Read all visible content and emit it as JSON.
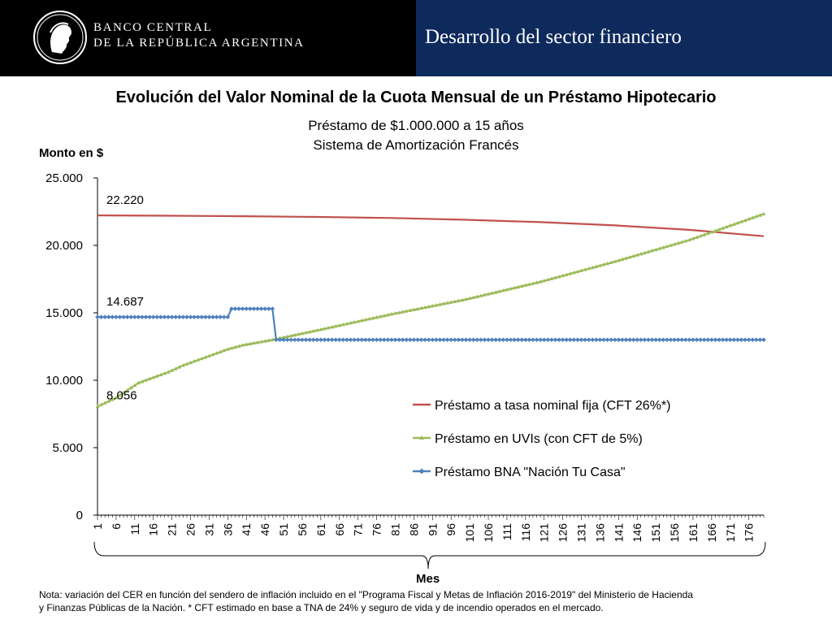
{
  "header": {
    "bank_name_line1": "BANCO CENTRAL",
    "bank_name_line2": "DE LA REPÚBLICA ARGENTINA",
    "section_title": "Desarrollo del sector financiero",
    "logo_icon": "republic-head-seal-icon"
  },
  "colors": {
    "header_left_bg": "#000000",
    "header_right_bg": "#0e2a5c",
    "series_fixed": "#c0504d",
    "series_uvi": "#9bbb59",
    "series_bna": "#4f81bd"
  },
  "chart_data": {
    "type": "line",
    "title": "Evolución del Valor Nominal de la Cuota Mensual de un Préstamo Hipotecario",
    "subtitle_line1": "Préstamo de $1.000.000 a 15 años",
    "subtitle_line2": "Sistema de Amortización Francés",
    "ylabel": "Monto en $",
    "xlabel": "Mes",
    "ylim": [
      0,
      25000
    ],
    "xlim": [
      1,
      180
    ],
    "y_ticks": [
      {
        "value": 0,
        "label": "0"
      },
      {
        "value": 5000,
        "label": "5.000"
      },
      {
        "value": 10000,
        "label": "10.000"
      },
      {
        "value": 15000,
        "label": "15.000"
      },
      {
        "value": 20000,
        "label": "20.000"
      },
      {
        "value": 25000,
        "label": "25.000"
      }
    ],
    "x_tick_labels": [
      "1",
      "6",
      "11",
      "16",
      "21",
      "26",
      "31",
      "36",
      "41",
      "46",
      "51",
      "56",
      "61",
      "66",
      "71",
      "76",
      "81",
      "86",
      "91",
      "96",
      "101",
      "106",
      "111",
      "116",
      "121",
      "126",
      "131",
      "136",
      "141",
      "146",
      "151",
      "156",
      "161",
      "166",
      "171",
      "176"
    ],
    "grid": false,
    "legend_position": "right-middle",
    "annotations": [
      {
        "text": "22.220",
        "x": 1,
        "y": 22220
      },
      {
        "text": "14.687",
        "x": 1,
        "y": 14687
      },
      {
        "text": "8.056",
        "x": 1,
        "y": 8056
      }
    ],
    "series": [
      {
        "name": "Préstamo a tasa nominal fija  (CFT 26%*)",
        "marker": "none",
        "points": [
          [
            1,
            22220
          ],
          [
            20,
            22200
          ],
          [
            40,
            22160
          ],
          [
            60,
            22110
          ],
          [
            80,
            22030
          ],
          [
            100,
            21900
          ],
          [
            120,
            21720
          ],
          [
            140,
            21480
          ],
          [
            160,
            21150
          ],
          [
            180,
            20680
          ]
        ]
      },
      {
        "name": "Préstamo en UVIs (con CFT de 5%)",
        "marker": "triangle",
        "points": [
          [
            1,
            8056
          ],
          [
            6,
            8700
          ],
          [
            12,
            9800
          ],
          [
            20,
            10600
          ],
          [
            24,
            11100
          ],
          [
            30,
            11700
          ],
          [
            36,
            12300
          ],
          [
            40,
            12600
          ],
          [
            48,
            13000
          ],
          [
            60,
            13700
          ],
          [
            80,
            14900
          ],
          [
            100,
            16000
          ],
          [
            120,
            17300
          ],
          [
            140,
            18800
          ],
          [
            160,
            20400
          ],
          [
            180,
            22330
          ]
        ]
      },
      {
        "name": "Préstamo BNA \"Nación Tu Casa\"",
        "marker": "diamond",
        "points": [
          [
            1,
            14687
          ],
          [
            36,
            14687
          ],
          [
            37,
            15300
          ],
          [
            48,
            15300
          ],
          [
            49,
            13000
          ],
          [
            180,
            13000
          ]
        ]
      }
    ]
  },
  "footnote": {
    "line1": "Nota: variación del CER en función del sendero de inflación incluido en el \"Programa Fiscal y Metas de Inflación 2016-2019\" del Ministerio de Hacienda",
    "line2": "y Finanzas Públicas de la Nación. * CFT estimado en base a TNA  de 24% y seguro de vida y de incendio operados en el mercado."
  }
}
